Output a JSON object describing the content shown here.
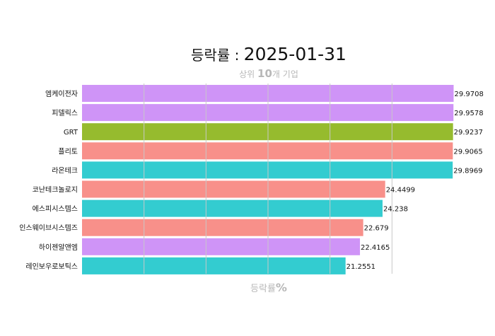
{
  "header": {
    "title_prefix": "등락률 : ",
    "title_date": "2025-01-31",
    "subtitle_prefix": "상위 ",
    "subtitle_number": "10",
    "subtitle_suffix": "개 기업",
    "xlabel_text": "등락률",
    "xlabel_unit": "%"
  },
  "colors": {
    "purple": "#cf94f7",
    "green": "#96bb2e",
    "salmon": "#f8908a",
    "teal": "#33ccd0",
    "grid": "#c8c8c8"
  },
  "chart_data": {
    "type": "bar",
    "orientation": "horizontal",
    "title": "등락률 : 2025-01-31",
    "subtitle": "상위 10개 기업",
    "xlabel": "등락률%",
    "ylabel": "",
    "xlim": [
      0,
      30
    ],
    "grid": true,
    "categories": [
      "엠케이전자",
      "피델릭스",
      "GRT",
      "플리토",
      "라온테크",
      "코난테크놀로지",
      "에스피시스템스",
      "인스웨이브시스템즈",
      "하이젠알앤엠",
      "레인보우로보틱스"
    ],
    "values": [
      29.9708,
      29.9578,
      29.9237,
      29.9065,
      29.8969,
      24.4499,
      24.238,
      22.679,
      22.4165,
      21.2551
    ],
    "value_labels": [
      "29.9708",
      "29.9578",
      "29.9237",
      "29.9065",
      "29.8969",
      "24.4499",
      "24.238",
      "22.679",
      "22.4165",
      "21.2551"
    ],
    "bar_colors": [
      "purple",
      "purple",
      "green",
      "salmon",
      "teal",
      "salmon",
      "teal",
      "salmon",
      "purple",
      "teal"
    ]
  }
}
